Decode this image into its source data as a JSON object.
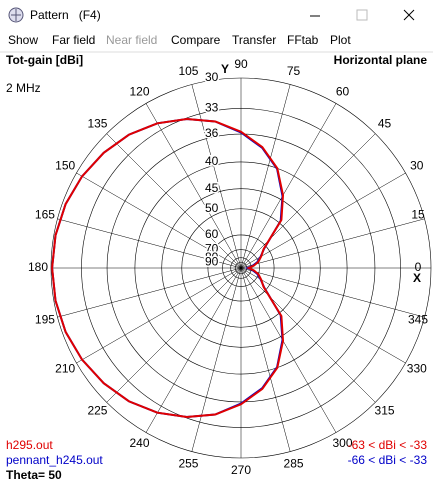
{
  "window": {
    "title": "Pattern   (F4)"
  },
  "menu": [
    "Show",
    "Far field",
    "Near field",
    "Compare",
    "Transfer",
    "FFtab",
    "Plot"
  ],
  "chart_data": {
    "type": "polar",
    "title": "Tot-gain [dBi]",
    "subtitle": "Horizontal plane",
    "frequency": "2 MHz",
    "theta": "Theta= 50",
    "x_axis_label": "X",
    "y_axis_label": "Y",
    "rlim": [
      30,
      90
    ],
    "rticks": [
      30,
      33,
      36,
      40,
      45,
      50,
      60,
      70,
      80,
      90
    ],
    "angle_ticks": [
      0,
      15,
      30,
      45,
      60,
      75,
      90,
      105,
      120,
      135,
      150,
      165,
      180,
      195,
      210,
      225,
      240,
      255,
      270,
      285,
      300,
      315,
      330,
      345
    ],
    "grid": true,
    "angles": [
      0,
      10,
      20,
      30,
      40,
      50,
      60,
      70,
      80,
      90,
      100,
      110,
      120,
      130,
      140,
      150,
      160,
      170,
      180,
      190,
      200,
      210,
      220,
      230,
      240,
      250,
      260,
      270,
      280,
      290,
      300,
      310,
      320,
      330,
      340,
      350
    ],
    "series": [
      {
        "name": "h295.out",
        "range": "-63 < dBi < -33",
        "color": "#e00000",
        "values": [
          85,
          76,
          70,
          66,
          62,
          49,
          44,
          40,
          37.5,
          35.7,
          34.2,
          33.1,
          32.2,
          31.5,
          31,
          30.6,
          30.3,
          30.15,
          30.1,
          30.15,
          30.3,
          30.6,
          31,
          31.5,
          32.2,
          33.1,
          34.2,
          35.7,
          37.5,
          40,
          44,
          49,
          62,
          66,
          70,
          76
        ]
      },
      {
        "name": "pennant_h245.out",
        "range": "-66 < dBi < -33",
        "color": "#0000c8",
        "values": [
          88,
          78,
          71,
          66.5,
          61.5,
          49.3,
          44.2,
          40.1,
          37.6,
          35.8,
          34.2,
          33.1,
          32.2,
          31.5,
          31,
          30.6,
          30.3,
          30.15,
          30.1,
          30.15,
          30.3,
          30.6,
          31,
          31.5,
          32.2,
          33.1,
          34.2,
          35.8,
          37.6,
          40.1,
          44.2,
          49.3,
          61.5,
          66.5,
          71,
          78
        ]
      }
    ]
  }
}
